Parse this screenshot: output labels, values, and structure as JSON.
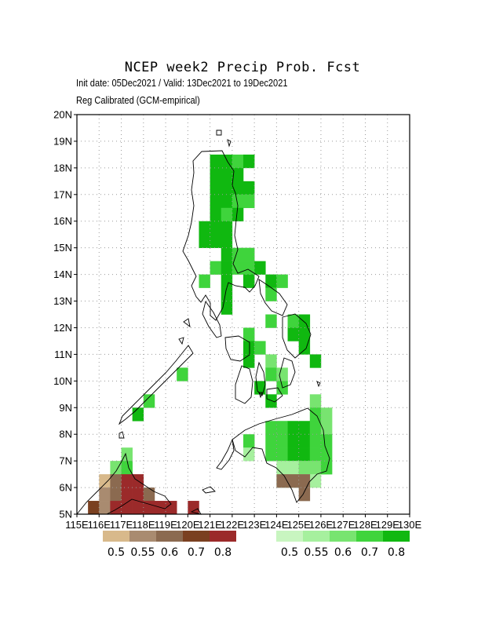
{
  "title": "NCEP week2 Precip Prob. Fcst",
  "subtitle": "Init date: 05Dec2021 / Valid: 13Dec2021 to 19Dec2021",
  "calibration": "Reg Calibrated (GCM-empirical)",
  "map": {
    "lon_range": [
      115,
      130
    ],
    "lat_range": [
      5,
      20
    ],
    "grid_step_deg": 1,
    "grid": "dotted",
    "lat_labels": [
      "5N",
      "6N",
      "7N",
      "8N",
      "9N",
      "10N",
      "11N",
      "12N",
      "13N",
      "14N",
      "15N",
      "16N",
      "17N",
      "18N",
      "19N",
      "20N"
    ],
    "lon_labels": [
      "115E",
      "116E",
      "117E",
      "118E",
      "119E",
      "120E",
      "121E",
      "122E",
      "123E",
      "124E",
      "125E",
      "126E",
      "127E",
      "128E",
      "129E",
      "130E"
    ],
    "cell_size_deg": 0.5
  },
  "legend_dry": {
    "labels": [
      "0.5",
      "0.55",
      "0.6",
      "0.7",
      "0.8"
    ],
    "colors": [
      "#d8b98b",
      "#a98b70",
      "#8b6a50",
      "#7a4020",
      "#9b2a2a"
    ]
  },
  "legend_wet": {
    "labels": [
      "0.5",
      "0.55",
      "0.6",
      "0.7",
      "0.8"
    ],
    "colors": [
      "#c8f5c0",
      "#a6f09e",
      "#78e470",
      "#3fd43c",
      "#10b810"
    ]
  },
  "wet_cells": [
    {
      "lon": 119.5,
      "lat": 10.0,
      "p": 3
    },
    {
      "lon": 120.5,
      "lat": 15.5,
      "p": 4
    },
    {
      "lon": 120.5,
      "lat": 15.0,
      "p": 4
    },
    {
      "lon": 120.5,
      "lat": 13.5,
      "p": 3
    },
    {
      "lon": 121.0,
      "lat": 18.0,
      "p": 4
    },
    {
      "lon": 121.5,
      "lat": 18.0,
      "p": 4
    },
    {
      "lon": 122.0,
      "lat": 18.0,
      "p": 3
    },
    {
      "lon": 122.5,
      "lat": 18.0,
      "p": 4
    },
    {
      "lon": 121.0,
      "lat": 17.5,
      "p": 4
    },
    {
      "lon": 121.5,
      "lat": 17.5,
      "p": 4
    },
    {
      "lon": 122.0,
      "lat": 17.5,
      "p": 4
    },
    {
      "lon": 121.0,
      "lat": 17.0,
      "p": 4
    },
    {
      "lon": 121.5,
      "lat": 17.0,
      "p": 4
    },
    {
      "lon": 122.0,
      "lat": 17.0,
      "p": 4
    },
    {
      "lon": 122.5,
      "lat": 17.0,
      "p": 4
    },
    {
      "lon": 121.0,
      "lat": 16.5,
      "p": 4
    },
    {
      "lon": 121.5,
      "lat": 16.5,
      "p": 4
    },
    {
      "lon": 122.0,
      "lat": 16.5,
      "p": 3
    },
    {
      "lon": 122.5,
      "lat": 16.5,
      "p": 3
    },
    {
      "lon": 121.0,
      "lat": 16.0,
      "p": 4
    },
    {
      "lon": 121.5,
      "lat": 16.0,
      "p": 3
    },
    {
      "lon": 122.0,
      "lat": 16.0,
      "p": 4
    },
    {
      "lon": 121.0,
      "lat": 15.5,
      "p": 4
    },
    {
      "lon": 121.5,
      "lat": 15.5,
      "p": 4
    },
    {
      "lon": 121.0,
      "lat": 15.0,
      "p": 4
    },
    {
      "lon": 121.5,
      "lat": 15.0,
      "p": 4
    },
    {
      "lon": 121.5,
      "lat": 14.5,
      "p": 4
    },
    {
      "lon": 121.0,
      "lat": 14.0,
      "p": 3
    },
    {
      "lon": 121.5,
      "lat": 14.0,
      "p": 4
    },
    {
      "lon": 122.0,
      "lat": 14.0,
      "p": 3
    },
    {
      "lon": 121.5,
      "lat": 13.5,
      "p": 4
    },
    {
      "lon": 121.5,
      "lat": 13.0,
      "p": 4
    },
    {
      "lon": 121.5,
      "lat": 12.5,
      "p": 4
    },
    {
      "lon": 122.0,
      "lat": 14.5,
      "p": 3
    },
    {
      "lon": 122.5,
      "lat": 14.5,
      "p": 3
    },
    {
      "lon": 122.5,
      "lat": 14.0,
      "p": 3
    },
    {
      "lon": 123.0,
      "lat": 14.0,
      "p": 4
    },
    {
      "lon": 122.5,
      "lat": 13.5,
      "p": 4
    },
    {
      "lon": 123.5,
      "lat": 13.5,
      "p": 4
    },
    {
      "lon": 124.0,
      "lat": 13.5,
      "p": 3
    },
    {
      "lon": 123.5,
      "lat": 13.0,
      "p": 3
    },
    {
      "lon": 123.5,
      "lat": 12.0,
      "p": 3
    },
    {
      "lon": 124.5,
      "lat": 12.0,
      "p": 3
    },
    {
      "lon": 125.0,
      "lat": 12.0,
      "p": 4
    },
    {
      "lon": 124.5,
      "lat": 11.5,
      "p": 4
    },
    {
      "lon": 125.0,
      "lat": 11.5,
      "p": 4
    },
    {
      "lon": 125.0,
      "lat": 11.0,
      "p": 4
    },
    {
      "lon": 125.5,
      "lat": 10.5,
      "p": 4
    },
    {
      "lon": 122.5,
      "lat": 11.5,
      "p": 3
    },
    {
      "lon": 122.5,
      "lat": 11.0,
      "p": 4
    },
    {
      "lon": 123.0,
      "lat": 11.0,
      "p": 3
    },
    {
      "lon": 122.5,
      "lat": 10.5,
      "p": 4
    },
    {
      "lon": 123.5,
      "lat": 10.5,
      "p": 2
    },
    {
      "lon": 123.5,
      "lat": 10.0,
      "p": 3
    },
    {
      "lon": 124.0,
      "lat": 10.0,
      "p": 2
    },
    {
      "lon": 123.0,
      "lat": 9.5,
      "p": 4
    },
    {
      "lon": 124.0,
      "lat": 9.5,
      "p": 3
    },
    {
      "lon": 123.5,
      "lat": 9.0,
      "p": 4
    },
    {
      "lon": 117.5,
      "lat": 8.5,
      "p": 4
    },
    {
      "lon": 118.0,
      "lat": 9.0,
      "p": 3
    },
    {
      "lon": 125.5,
      "lat": 9.0,
      "p": 2
    },
    {
      "lon": 123.5,
      "lat": 8.0,
      "p": 3
    },
    {
      "lon": 124.0,
      "lat": 8.0,
      "p": 3
    },
    {
      "lon": 124.5,
      "lat": 8.0,
      "p": 4
    },
    {
      "lon": 125.0,
      "lat": 8.0,
      "p": 4
    },
    {
      "lon": 125.5,
      "lat": 8.0,
      "p": 3
    },
    {
      "lon": 126.0,
      "lat": 8.0,
      "p": 2
    },
    {
      "lon": 125.5,
      "lat": 8.5,
      "p": 3
    },
    {
      "lon": 126.0,
      "lat": 8.5,
      "p": 2
    },
    {
      "lon": 122.5,
      "lat": 7.5,
      "p": 3
    },
    {
      "lon": 123.5,
      "lat": 7.5,
      "p": 3
    },
    {
      "lon": 124.0,
      "lat": 7.5,
      "p": 3
    },
    {
      "lon": 124.5,
      "lat": 7.5,
      "p": 4
    },
    {
      "lon": 125.0,
      "lat": 7.5,
      "p": 4
    },
    {
      "lon": 125.5,
      "lat": 7.5,
      "p": 3
    },
    {
      "lon": 126.0,
      "lat": 7.5,
      "p": 3
    },
    {
      "lon": 122.5,
      "lat": 7.0,
      "p": 1
    },
    {
      "lon": 123.5,
      "lat": 7.0,
      "p": 3
    },
    {
      "lon": 124.0,
      "lat": 7.0,
      "p": 3
    },
    {
      "lon": 124.5,
      "lat": 7.0,
      "p": 4
    },
    {
      "lon": 125.0,
      "lat": 7.0,
      "p": 4
    },
    {
      "lon": 125.5,
      "lat": 7.0,
      "p": 3
    },
    {
      "lon": 126.0,
      "lat": 7.0,
      "p": 3
    },
    {
      "lon": 124.0,
      "lat": 6.5,
      "p": 1
    },
    {
      "lon": 124.5,
      "lat": 6.5,
      "p": 1
    },
    {
      "lon": 125.0,
      "lat": 6.5,
      "p": 2
    },
    {
      "lon": 125.5,
      "lat": 6.5,
      "p": 2
    },
    {
      "lon": 126.0,
      "lat": 6.5,
      "p": 3
    },
    {
      "lon": 124.0,
      "lat": 6.0,
      "p": 1
    },
    {
      "lon": 124.5,
      "lat": 6.0,
      "p": 1
    },
    {
      "lon": 125.0,
      "lat": 6.0,
      "p": 1
    },
    {
      "lon": 125.5,
      "lat": 6.0,
      "p": 1
    },
    {
      "lon": 117.0,
      "lat": 7.0,
      "p": 2
    },
    {
      "lon": 116.5,
      "lat": 6.5,
      "p": 2
    },
    {
      "lon": 117.0,
      "lat": 6.5,
      "p": 3
    }
  ],
  "dry_cells": [
    {
      "lon": 116.0,
      "lat": 6.0,
      "p": 0
    },
    {
      "lon": 116.5,
      "lat": 6.0,
      "p": 2
    },
    {
      "lon": 117.0,
      "lat": 6.0,
      "p": 4
    },
    {
      "lon": 117.5,
      "lat": 6.0,
      "p": 4
    },
    {
      "lon": 116.0,
      "lat": 5.5,
      "p": 1
    },
    {
      "lon": 116.5,
      "lat": 5.5,
      "p": 2
    },
    {
      "lon": 117.0,
      "lat": 5.5,
      "p": 4
    },
    {
      "lon": 117.5,
      "lat": 5.5,
      "p": 4
    },
    {
      "lon": 118.0,
      "lat": 5.5,
      "p": 2
    },
    {
      "lon": 115.5,
      "lat": 5.0,
      "p": 3
    },
    {
      "lon": 116.0,
      "lat": 5.0,
      "p": 1
    },
    {
      "lon": 116.5,
      "lat": 5.0,
      "p": 4
    },
    {
      "lon": 117.0,
      "lat": 5.0,
      "p": 4
    },
    {
      "lon": 117.5,
      "lat": 5.0,
      "p": 4
    },
    {
      "lon": 118.0,
      "lat": 5.0,
      "p": 4
    },
    {
      "lon": 118.5,
      "lat": 5.0,
      "p": 4
    },
    {
      "lon": 119.0,
      "lat": 5.0,
      "p": 4
    },
    {
      "lon": 120.0,
      "lat": 5.0,
      "p": 4
    },
    {
      "lon": 124.0,
      "lat": 6.0,
      "p": 2
    },
    {
      "lon": 124.5,
      "lat": 6.0,
      "p": 2
    },
    {
      "lon": 125.0,
      "lat": 6.0,
      "p": 2
    },
    {
      "lon": 125.0,
      "lat": 5.5,
      "p": 2
    }
  ]
}
